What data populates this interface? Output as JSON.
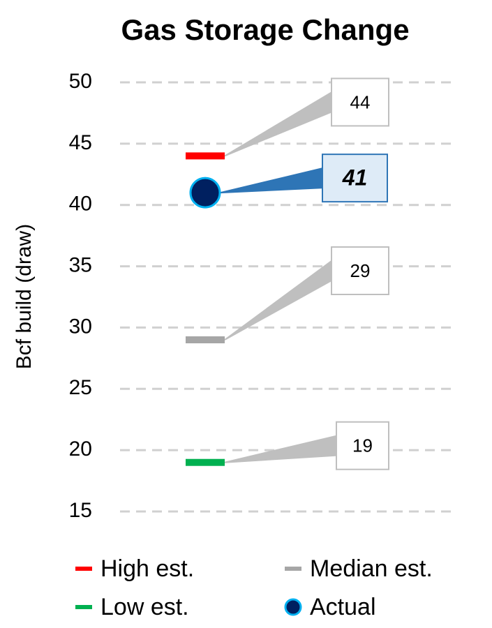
{
  "chart_data": {
    "type": "scatter",
    "title": "Gas Storage Change",
    "y_label": "Bcf build (draw)",
    "ylim": [
      15,
      50
    ],
    "yticks": [
      15,
      20,
      25,
      30,
      35,
      40,
      45,
      50
    ],
    "grid": true,
    "series": [
      {
        "name": "High est.",
        "color": "#ff0000",
        "marker": "dash",
        "values": [
          44
        ]
      },
      {
        "name": "Median est.",
        "color": "#a6a6a6",
        "marker": "dash",
        "values": [
          29
        ]
      },
      {
        "name": "Low est.",
        "color": "#00b050",
        "marker": "dash",
        "values": [
          19
        ]
      },
      {
        "name": "Actual",
        "color": "#002060",
        "marker": "circle",
        "values": [
          41
        ]
      }
    ]
  }
}
